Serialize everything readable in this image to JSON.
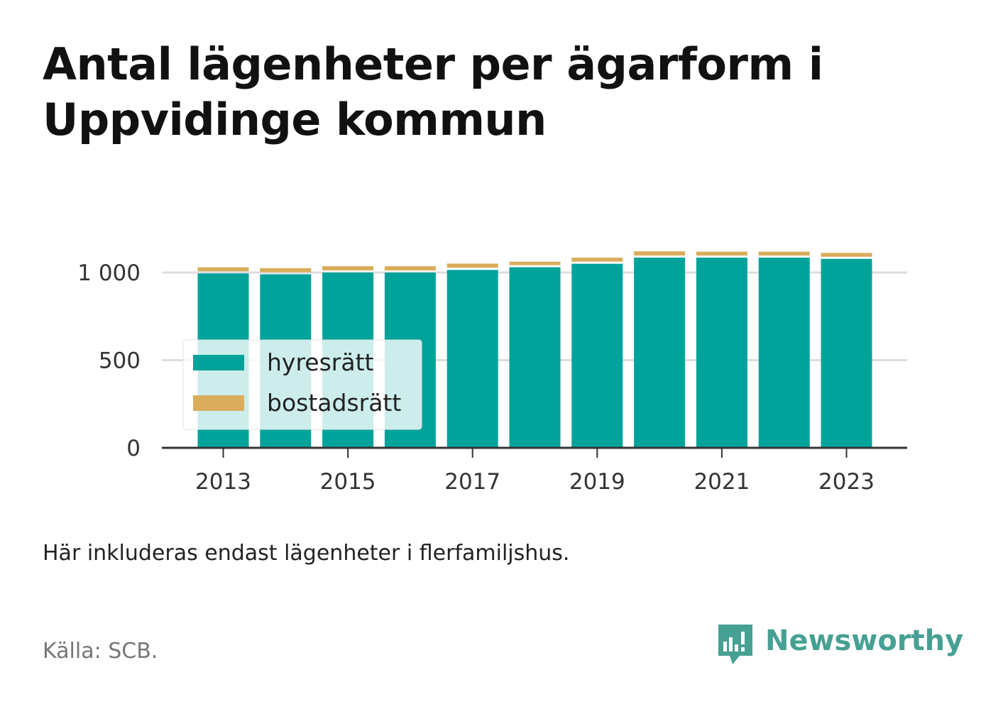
{
  "title": "Antal lägenheter per ägarform i Uppvidinge kommun",
  "note": "Här inkluderas endast lägenheter i flerfamiljshus.",
  "source": "Källa: SCB.",
  "brand": {
    "name": "Newsworthy",
    "icon": "newsworthy-logo-icon",
    "color": "#46a093"
  },
  "chart_data": {
    "type": "bar",
    "stacked": true,
    "categories": [
      2013,
      2014,
      2015,
      2016,
      2017,
      2018,
      2019,
      2020,
      2021,
      2022,
      2023
    ],
    "x_tick_labels": [
      "2013",
      "2015",
      "2017",
      "2019",
      "2021",
      "2023"
    ],
    "series": [
      {
        "name": "hyresrätt",
        "color": "#00a39a",
        "values": [
          995,
          990,
          1000,
          1000,
          1015,
          1030,
          1050,
          1085,
          1085,
          1085,
          1078
        ]
      },
      {
        "name": "bostadsrätt",
        "color": "#d9ad5b",
        "values": [
          35,
          35,
          36,
          36,
          36,
          32,
          35,
          36,
          34,
          34,
          34
        ]
      }
    ],
    "y_ticks": [
      {
        "value": 0,
        "label": "0"
      },
      {
        "value": 500,
        "label": "500"
      },
      {
        "value": 1000,
        "label": "1 000"
      }
    ],
    "ylim": [
      0,
      1000
    ],
    "grid": true,
    "legend_position": "bottom-left"
  }
}
